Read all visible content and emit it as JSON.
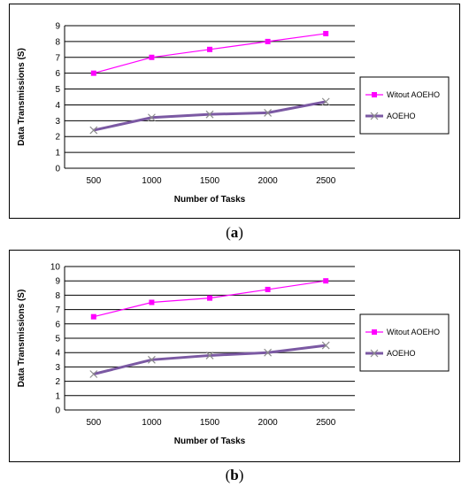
{
  "captions": [
    "a",
    "b"
  ],
  "legend": {
    "series1": "Witout AOEHO",
    "series2": "AOEHO"
  },
  "colors": {
    "series1": "#ff00ff",
    "series2": "#7b59a3",
    "grid": "#000000"
  },
  "chart_data": [
    {
      "type": "line",
      "categories": [
        "500",
        "1000",
        "1500",
        "2000",
        "2500"
      ],
      "series": [
        {
          "name": "Witout AOEHO",
          "values": [
            6.0,
            7.0,
            7.5,
            8.0,
            8.5
          ],
          "marker": "square"
        },
        {
          "name": "AOEHO",
          "values": [
            2.4,
            3.2,
            3.4,
            3.5,
            4.2
          ],
          "marker": "x"
        }
      ],
      "xlabel": "Number of Tasks",
      "ylabel": "Data Transmissions (S)",
      "ylim": [
        0,
        9
      ],
      "yticks": [
        0,
        1,
        2,
        3,
        4,
        5,
        6,
        7,
        8,
        9
      ],
      "grid": "horizontal",
      "legend_position": "right"
    },
    {
      "type": "line",
      "categories": [
        "500",
        "1000",
        "1500",
        "2000",
        "2500"
      ],
      "series": [
        {
          "name": "Witout AOEHO",
          "values": [
            6.5,
            7.5,
            7.8,
            8.4,
            9.0
          ],
          "marker": "square"
        },
        {
          "name": "AOEHO",
          "values": [
            2.5,
            3.5,
            3.8,
            4.0,
            4.5
          ],
          "marker": "x"
        }
      ],
      "xlabel": "Number of Tasks",
      "ylabel": "Data Transmissions (S)",
      "ylim": [
        0,
        10
      ],
      "yticks": [
        0,
        1,
        2,
        3,
        4,
        5,
        6,
        7,
        8,
        9,
        10
      ],
      "grid": "horizontal",
      "legend_position": "right"
    }
  ]
}
